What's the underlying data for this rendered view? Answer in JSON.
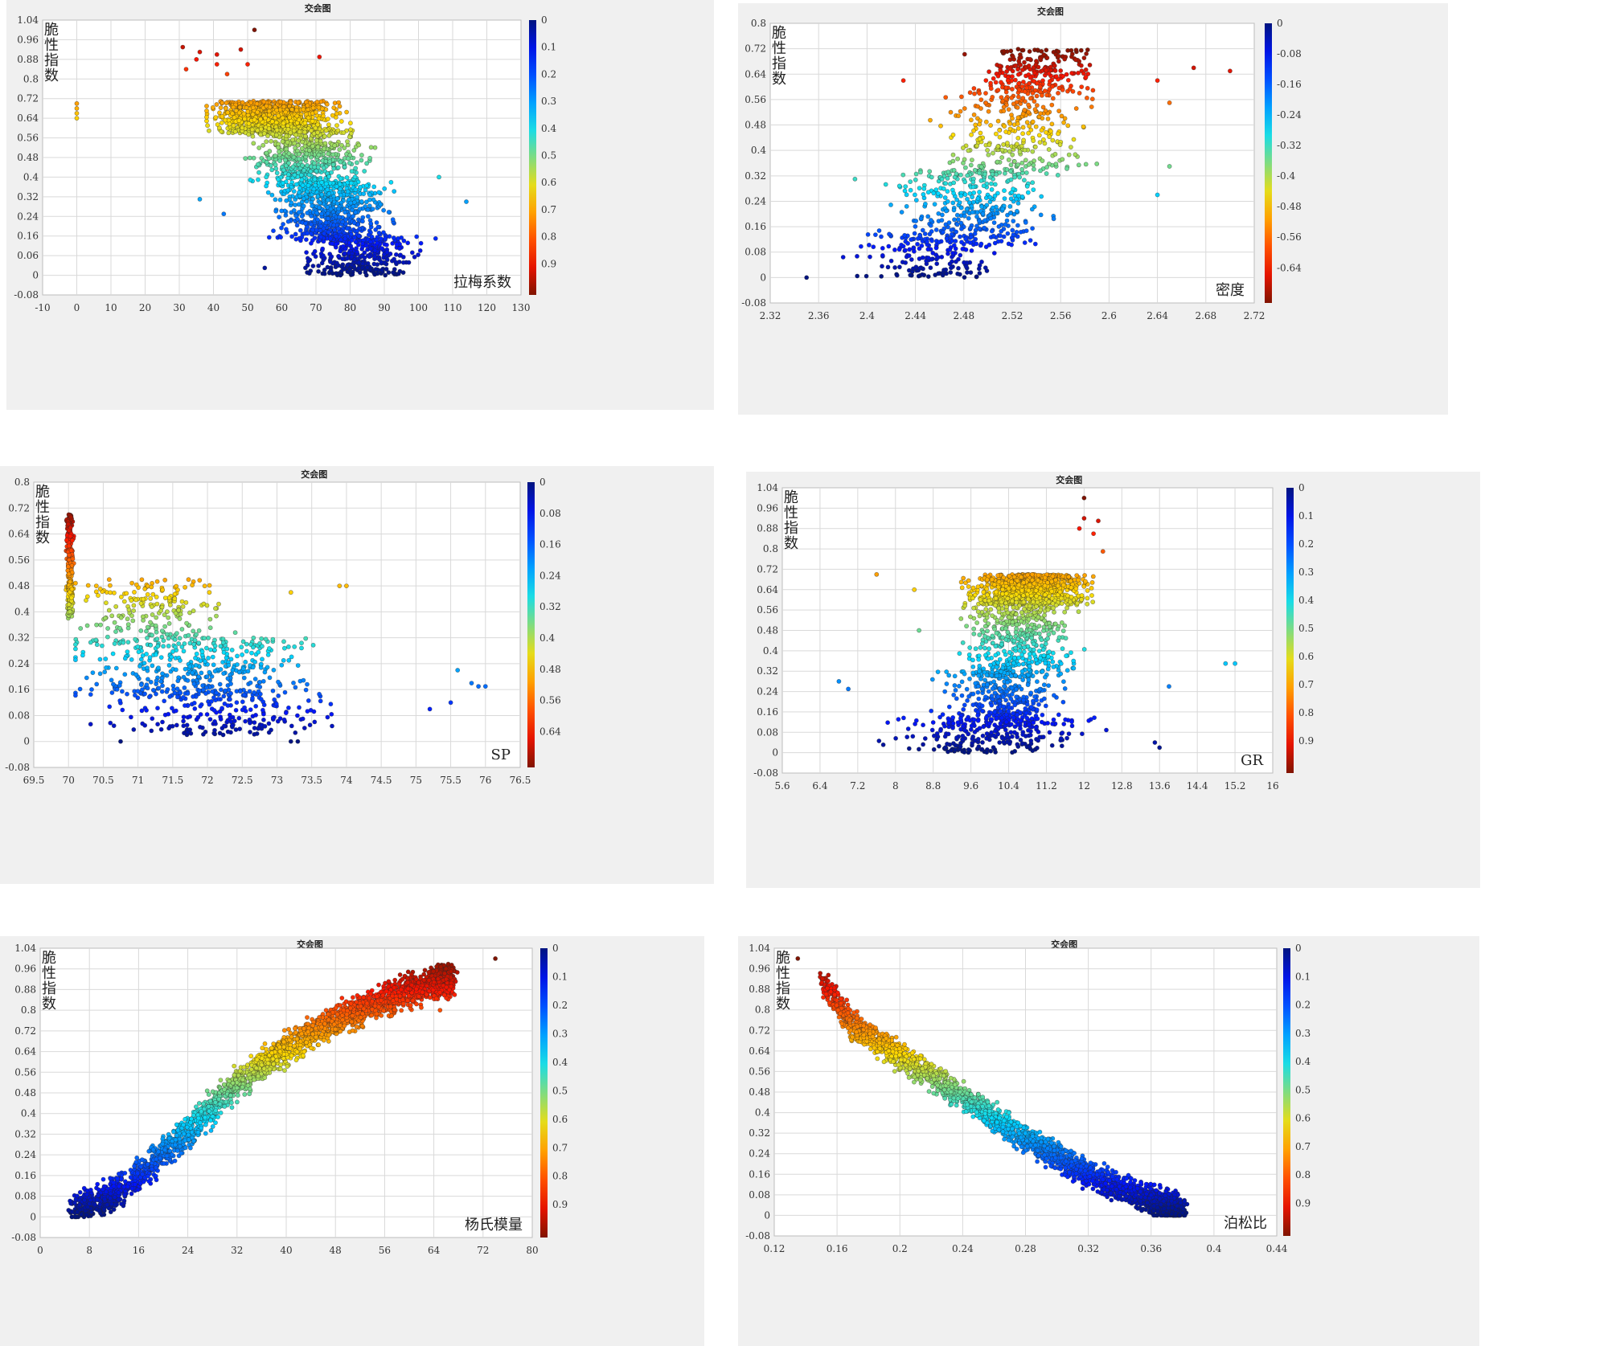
{
  "chart_data": [
    {
      "type": "scatter",
      "title": "交会图",
      "ylabel": "脆性指数",
      "xlabel": "拉梅系数",
      "x_ticks": [
        "-10",
        "0",
        "10",
        "20",
        "30",
        "40",
        "50",
        "60",
        "70",
        "80",
        "90",
        "100",
        "110",
        "120",
        "130"
      ],
      "y_ticks": [
        "1.04",
        "0.96",
        "0.88",
        "0.8",
        "0.72",
        "0.64",
        "0.56",
        "0.48",
        "0.4",
        "0.32",
        "0.24",
        "0.16",
        "0.06",
        "0",
        "-0.08"
      ],
      "colorbar_ticks": [
        "0",
        "0.1",
        "0.2",
        "0.3",
        "0.4",
        "0.5",
        "0.6",
        "0.7",
        "0.8",
        "0.9"
      ],
      "xlim": [
        -10,
        130
      ],
      "ylim": [
        -0.08,
        1.04
      ],
      "colorbar_range": [
        0,
        1
      ],
      "grid": true,
      "points": [
        [
          0,
          0.64
        ],
        [
          0,
          0.66
        ],
        [
          0,
          0.68
        ],
        [
          0,
          0.7
        ],
        [
          31,
          0.93
        ],
        [
          32,
          0.84
        ],
        [
          35,
          0.88
        ],
        [
          36,
          0.91
        ],
        [
          41,
          0.9
        ],
        [
          41,
          0.86
        ],
        [
          44,
          0.82
        ],
        [
          48,
          0.92
        ],
        [
          50,
          0.86
        ],
        [
          52,
          1.0
        ],
        [
          71,
          0.89
        ],
        [
          36,
          0.31
        ],
        [
          43,
          0.25
        ],
        [
          55,
          0.03
        ],
        [
          105,
          0.15
        ],
        [
          114,
          0.3
        ],
        [
          106,
          0.4
        ]
      ],
      "clusters": [
        {
          "cx": [
            38,
            92
          ],
          "cy": [
            0.58,
            0.71
          ],
          "n": 900,
          "peak_x": 58
        },
        {
          "cx": [
            46,
            96
          ],
          "cy": [
            0.36,
            0.6
          ],
          "n": 550,
          "peak_x": 68
        },
        {
          "cx": [
            52,
            100
          ],
          "cy": [
            0.14,
            0.38
          ],
          "n": 600,
          "peak_x": 75
        },
        {
          "cx": [
            60,
            108
          ],
          "cy": [
            0.0,
            0.16
          ],
          "n": 350,
          "peak_x": 82
        }
      ]
    },
    {
      "type": "scatter",
      "title": "交会图",
      "ylabel": "脆性指数",
      "xlabel": "密度",
      "x_ticks": [
        "2.32",
        "2.36",
        "2.4",
        "2.44",
        "2.48",
        "2.52",
        "2.56",
        "2.6",
        "2.64",
        "2.68",
        "2.72"
      ],
      "y_ticks": [
        "0.8",
        "0.72",
        "0.64",
        "0.56",
        "0.48",
        "0.4",
        "0.32",
        "0.24",
        "0.16",
        "0.08",
        "0",
        "-0.08"
      ],
      "colorbar_ticks": [
        "0",
        "-0.08",
        "-0.16",
        "-0.24",
        "-0.32",
        "-0.4",
        "-0.48",
        "-0.56",
        "-0.64"
      ],
      "xlim": [
        2.32,
        2.72
      ],
      "ylim": [
        -0.08,
        0.8
      ],
      "colorbar_range": [
        0,
        0.72
      ],
      "grid": true,
      "points": [
        [
          2.35,
          0.0
        ],
        [
          2.67,
          0.66
        ],
        [
          2.7,
          0.65
        ],
        [
          2.64,
          0.62
        ],
        [
          2.65,
          0.55
        ],
        [
          2.65,
          0.35
        ],
        [
          2.64,
          0.26
        ],
        [
          2.43,
          0.62
        ],
        [
          2.39,
          0.31
        ]
      ],
      "clusters": [
        {
          "cx": [
            2.48,
            2.62
          ],
          "cy": [
            0.58,
            0.72
          ],
          "n": 220,
          "peak_x": 2.54
        },
        {
          "cx": [
            2.44,
            2.62
          ],
          "cy": [
            0.32,
            0.6
          ],
          "n": 320,
          "peak_x": 2.52
        },
        {
          "cx": [
            2.41,
            2.6
          ],
          "cy": [
            0.1,
            0.34
          ],
          "n": 360,
          "peak_x": 2.49
        },
        {
          "cx": [
            2.37,
            2.54
          ],
          "cy": [
            0.0,
            0.14
          ],
          "n": 160,
          "peak_x": 2.45
        }
      ]
    },
    {
      "type": "scatter",
      "title": "交会图",
      "ylabel": "脆性指数",
      "xlabel": "SP",
      "x_ticks": [
        "69.5",
        "70",
        "70.5",
        "71",
        "71.5",
        "72",
        "72.5",
        "73",
        "73.5",
        "74",
        "74.5",
        "75",
        "75.5",
        "76",
        "76.5"
      ],
      "y_ticks": [
        "0.8",
        "0.72",
        "0.64",
        "0.56",
        "0.48",
        "0.4",
        "0.32",
        "0.24",
        "0.16",
        "0.08",
        "0",
        "-0.08"
      ],
      "colorbar_ticks": [
        "0",
        "0.08",
        "0.16",
        "0.24",
        "0.32",
        "0.4",
        "0.48",
        "0.56",
        "0.64"
      ],
      "xlim": [
        69.5,
        76.5
      ],
      "ylim": [
        -0.08,
        0.8
      ],
      "colorbar_range": [
        0,
        0.72
      ],
      "grid": true,
      "points": [
        [
          70.4,
          0.48
        ],
        [
          73.2,
          0.46
        ],
        [
          73.9,
          0.48
        ],
        [
          74.0,
          0.48
        ],
        [
          75.8,
          0.18
        ],
        [
          75.9,
          0.17
        ],
        [
          76.0,
          0.17
        ],
        [
          75.6,
          0.22
        ],
        [
          75.5,
          0.12
        ],
        [
          75.2,
          0.1
        ],
        [
          70.75,
          0.0
        ],
        [
          73.2,
          0.0
        ],
        [
          73.3,
          0.0
        ]
      ],
      "clusters": [
        {
          "cx": [
            69.95,
            70.1
          ],
          "cy": [
            0.38,
            0.7
          ],
          "n": 260,
          "peak_x": 70.02
        },
        {
          "cx": [
            70.1,
            73.2
          ],
          "cy": [
            0.3,
            0.5
          ],
          "n": 200,
          "peak_x": 71.2
        },
        {
          "cx": [
            70.1,
            75.2
          ],
          "cy": [
            0.14,
            0.32
          ],
          "n": 380,
          "peak_x": 71.8
        },
        {
          "cx": [
            70.2,
            75.0
          ],
          "cy": [
            0.02,
            0.16
          ],
          "n": 220,
          "peak_x": 72.2
        }
      ]
    },
    {
      "type": "scatter",
      "title": "交会图",
      "ylabel": "脆性指数",
      "xlabel": "GR",
      "x_ticks": [
        "5.6",
        "6.4",
        "7.2",
        "8",
        "8.8",
        "9.6",
        "10.4",
        "11.2",
        "12",
        "12.8",
        "13.6",
        "14.4",
        "15.2",
        "16"
      ],
      "y_ticks": [
        "1.04",
        "0.96",
        "0.88",
        "0.8",
        "0.72",
        "0.64",
        "0.56",
        "0.48",
        "0.4",
        "0.32",
        "0.24",
        "0.16",
        "0.08",
        "0",
        "-0.08"
      ],
      "colorbar_ticks": [
        "0",
        "0.1",
        "0.2",
        "0.3",
        "0.4",
        "0.5",
        "0.6",
        "0.7",
        "0.8",
        "0.9"
      ],
      "xlim": [
        5.6,
        16
      ],
      "ylim": [
        -0.08,
        1.04
      ],
      "colorbar_range": [
        0,
        1
      ],
      "grid": true,
      "points": [
        [
          12.0,
          1.0
        ],
        [
          12.0,
          0.92
        ],
        [
          12.3,
          0.91
        ],
        [
          11.9,
          0.88
        ],
        [
          12.2,
          0.86
        ],
        [
          12.4,
          0.79
        ],
        [
          7.6,
          0.7
        ],
        [
          8.4,
          0.64
        ],
        [
          8.5,
          0.48
        ],
        [
          15.0,
          0.35
        ],
        [
          15.2,
          0.35
        ],
        [
          13.8,
          0.26
        ],
        [
          6.8,
          0.28
        ],
        [
          7.0,
          0.25
        ],
        [
          13.5,
          0.04
        ],
        [
          13.6,
          0.02
        ]
      ],
      "clusters": [
        {
          "cx": [
            9.2,
            12.8
          ],
          "cy": [
            0.58,
            0.7
          ],
          "n": 900,
          "peak_x": 10.8
        },
        {
          "cx": [
            9.0,
            12.6
          ],
          "cy": [
            0.3,
            0.58
          ],
          "n": 420,
          "peak_x": 10.6
        },
        {
          "cx": [
            8.6,
            12.4
          ],
          "cy": [
            0.1,
            0.32
          ],
          "n": 360,
          "peak_x": 10.2
        },
        {
          "cx": [
            7.0,
            13.0
          ],
          "cy": [
            0.0,
            0.14
          ],
          "n": 220,
          "peak_x": 10.0
        }
      ]
    },
    {
      "type": "scatter",
      "title": "交会图",
      "ylabel": "脆性指数",
      "xlabel": "杨氏模量",
      "x_ticks": [
        "0",
        "8",
        "16",
        "24",
        "32",
        "40",
        "48",
        "56",
        "64",
        "72",
        "80"
      ],
      "y_ticks": [
        "1.04",
        "0.96",
        "0.88",
        "0.8",
        "0.72",
        "0.64",
        "0.56",
        "0.48",
        "0.4",
        "0.32",
        "0.24",
        "0.16",
        "0.08",
        "0",
        "-0.08"
      ],
      "colorbar_ticks": [
        "0",
        "0.1",
        "0.2",
        "0.3",
        "0.4",
        "0.5",
        "0.6",
        "0.7",
        "0.8",
        "0.9"
      ],
      "xlim": [
        0,
        80
      ],
      "ylim": [
        -0.08,
        1.04
      ],
      "colorbar_range": [
        0,
        1
      ],
      "grid": true,
      "points": [
        [
          74,
          1.0
        ],
        [
          66,
          0.92
        ],
        [
          65,
          0.8
        ]
      ],
      "trend": {
        "x": [
          5,
          10,
          16,
          24,
          32,
          40,
          48,
          56,
          64,
          67
        ],
        "y": [
          0.03,
          0.06,
          0.16,
          0.33,
          0.52,
          0.65,
          0.76,
          0.84,
          0.9,
          0.92
        ],
        "spread": 0.04,
        "n": 2800
      }
    },
    {
      "type": "scatter",
      "title": "交会图",
      "ylabel": "脆性指数",
      "xlabel": "泊松比",
      "x_ticks": [
        "0.12",
        "0.16",
        "0.2",
        "0.24",
        "0.28",
        "0.32",
        "0.36",
        "0.4",
        "0.44"
      ],
      "y_ticks": [
        "1.04",
        "0.96",
        "0.88",
        "0.8",
        "0.72",
        "0.64",
        "0.56",
        "0.48",
        "0.4",
        "0.32",
        "0.24",
        "0.16",
        "0.08",
        "0",
        "-0.08"
      ],
      "colorbar_ticks": [
        "0",
        "0.1",
        "0.2",
        "0.3",
        "0.4",
        "0.5",
        "0.6",
        "0.7",
        "0.8",
        "0.9"
      ],
      "xlim": [
        0.12,
        0.44
      ],
      "ylim": [
        -0.08,
        1.04
      ],
      "colorbar_range": [
        0,
        1
      ],
      "grid": true,
      "points": [
        [
          0.135,
          1.0
        ]
      ],
      "trend": {
        "x": [
          0.15,
          0.17,
          0.2,
          0.24,
          0.28,
          0.32,
          0.36,
          0.38
        ],
        "y": [
          0.92,
          0.74,
          0.62,
          0.46,
          0.3,
          0.16,
          0.06,
          0.02
        ],
        "spread": 0.035,
        "n": 2600
      }
    }
  ]
}
